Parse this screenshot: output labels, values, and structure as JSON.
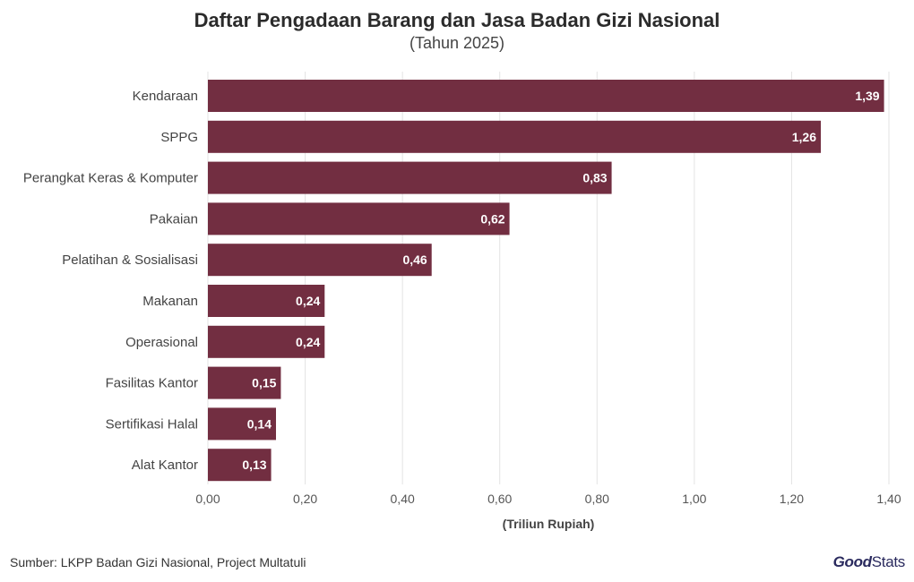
{
  "chart_data": {
    "type": "bar",
    "orientation": "horizontal",
    "title": "Daftar Pengadaan Barang dan Jasa Badan Gizi Nasional",
    "subtitle": "(Tahun 2025)",
    "xlabel": "(Triliun Rupiah)",
    "ylabel": "",
    "categories": [
      "Kendaraan",
      "SPPG",
      "Perangkat Keras & Komputer",
      "Pakaian",
      "Pelatihan & Sosialisasi",
      "Makanan",
      "Operasional",
      "Fasilitas Kantor",
      "Sertifikasi Halal",
      "Alat Kantor"
    ],
    "values": [
      1.39,
      1.26,
      0.83,
      0.62,
      0.46,
      0.24,
      0.24,
      0.15,
      0.14,
      0.13
    ],
    "value_labels": [
      "1,39",
      "1,26",
      "0,83",
      "0,62",
      "0,46",
      "0,24",
      "0,24",
      "0,15",
      "0,14",
      "0,13"
    ],
    "xlim": [
      0,
      1.4
    ],
    "xticks": [
      0,
      0.2,
      0.4,
      0.6,
      0.8,
      1.0,
      1.2,
      1.4
    ],
    "xtick_labels": [
      "0,00",
      "0,20",
      "0,40",
      "0,60",
      "0,80",
      "1,00",
      "1,20",
      "1,40"
    ],
    "grid": "vertical",
    "legend": "none",
    "bar_color": "#722e41"
  },
  "footer": {
    "source": "Sumber: LKPP Badan Gizi Nasional, Project Multatuli",
    "brand_good": "Good",
    "brand_stats": "Stats"
  }
}
